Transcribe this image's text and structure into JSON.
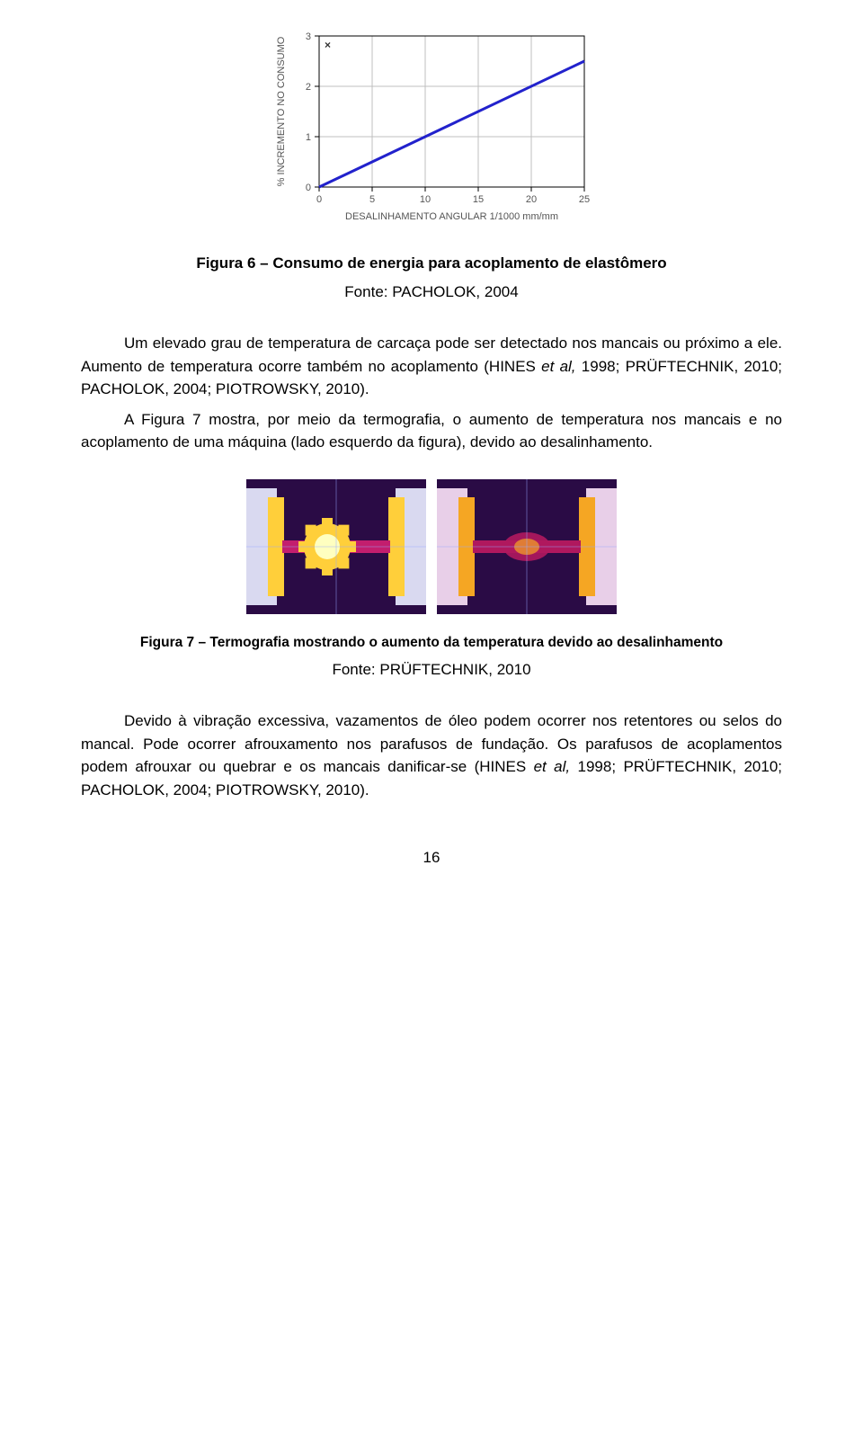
{
  "chart": {
    "type": "line",
    "xlabel": "DESALINHAMENTO ANGULAR 1/1000 mm/mm",
    "ylabel": "% INCREMENTO NO CONSUMO",
    "series_symbol": "×",
    "xlim": [
      0,
      25
    ],
    "ylim": [
      0,
      3
    ],
    "xticks": [
      0,
      5,
      10,
      15,
      20,
      25
    ],
    "yticks": [
      0,
      1,
      2,
      3
    ],
    "points": [
      {
        "x": 0,
        "y": 0.0
      },
      {
        "x": 25,
        "y": 2.5
      }
    ],
    "line_color": "#2222cc",
    "line_width": 3,
    "axis_color": "#000000",
    "grid_color": "#bfbfbf",
    "background_color": "#ffffff",
    "tick_font_size": 11,
    "label_font_size": 11
  },
  "fig6": {
    "caption": "Figura 6 – Consumo de energia para acoplamento de elastômero",
    "source": "Fonte: PACHOLOK, 2004"
  },
  "para1_a": "Um elevado grau de temperatura de carcaça pode ser detectado nos mancais ou próximo a ele. Aumento de temperatura ocorre também no acoplamento (HINES ",
  "para1_b": "et al,",
  "para1_c": " 1998; PRÜFTECHNIK, 2010; PACHOLOK, 2004; PIOTROWSKY, 2010).",
  "para2": "A Figura 7 mostra, por meio da termografia, o aumento de temperatura nos mancais e no acoplamento de uma máquina (lado esquerdo da figura), devido ao desalinhamento.",
  "thermo": {
    "left": {
      "colors": {
        "bg": "#2a0b45",
        "mid": "#c31e6e",
        "hot": "#ffcf3a",
        "hottest": "#ffffc0",
        "edge_cool": "#d9d9f0"
      }
    },
    "right": {
      "colors": {
        "bg": "#2a0b45",
        "mid": "#b0185e",
        "hot": "#f5a623",
        "edge_cool": "#e8cfe8"
      }
    }
  },
  "fig7": {
    "caption": "Figura 7 – Termografia mostrando o aumento da temperatura devido ao desalinhamento",
    "source": "Fonte: PRÜFTECHNIK, 2010"
  },
  "para3_a": "Devido à vibração excessiva, vazamentos de óleo podem ocorrer nos retentores ou selos do mancal. Pode ocorrer afrouxamento nos parafusos de fundação. Os parafusos de acoplamentos podem afrouxar ou quebrar e os mancais danificar-se (HINES ",
  "para3_b": "et al,",
  "para3_c": " 1998; PRÜFTECHNIK, 2010; PACHOLOK, 2004; PIOTROWSKY, 2010).",
  "page_number": "16"
}
